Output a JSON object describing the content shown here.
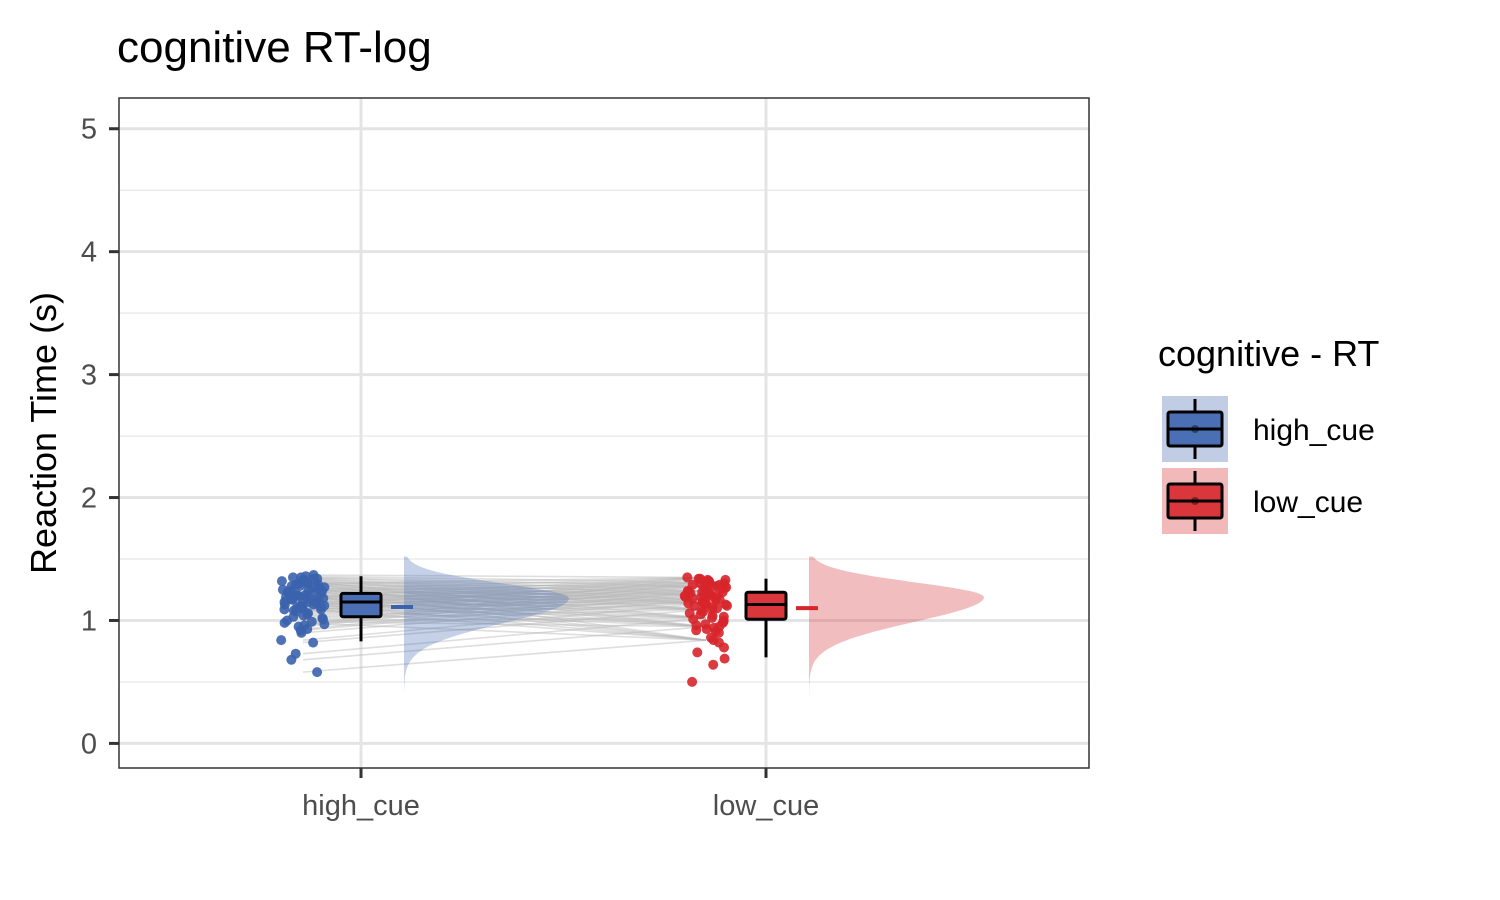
{
  "chart_data": {
    "type": "raincloud",
    "title": "cognitive RT-log",
    "ylabel": "Reaction Time (s)",
    "xlabel": "",
    "categories": [
      "high_cue",
      "low_cue"
    ],
    "ylim": [
      -0.2,
      5.25
    ],
    "yticks": [
      0,
      1,
      2,
      3,
      4,
      5
    ],
    "grid": true,
    "legend": {
      "title": "cognitive  - RT",
      "position": "right",
      "entries": [
        "high_cue",
        "low_cue"
      ]
    },
    "series": [
      {
        "name": "high_cue",
        "color": "#3b63ad",
        "fill": "#4a6fb5",
        "box": {
          "min": 0.83,
          "q1": 1.03,
          "median": 1.15,
          "q3": 1.22,
          "max": 1.36
        },
        "mean": 1.11,
        "density_range": [
          0.42,
          1.52
        ],
        "density_peak": 1.18,
        "points": [
          1.37,
          1.36,
          1.35,
          1.35,
          1.34,
          1.34,
          1.33,
          1.33,
          1.32,
          1.32,
          1.31,
          1.3,
          1.3,
          1.29,
          1.29,
          1.28,
          1.28,
          1.27,
          1.27,
          1.26,
          1.26,
          1.25,
          1.25,
          1.24,
          1.24,
          1.23,
          1.23,
          1.22,
          1.22,
          1.21,
          1.21,
          1.2,
          1.2,
          1.19,
          1.19,
          1.18,
          1.18,
          1.17,
          1.17,
          1.16,
          1.16,
          1.15,
          1.15,
          1.14,
          1.14,
          1.13,
          1.13,
          1.12,
          1.12,
          1.11,
          1.11,
          1.1,
          1.1,
          1.09,
          1.09,
          1.08,
          1.07,
          1.06,
          1.05,
          1.04,
          1.03,
          1.02,
          1.01,
          1.0,
          0.99,
          0.98,
          0.97,
          0.96,
          0.95,
          0.93,
          0.92,
          0.9,
          0.84,
          0.82,
          0.73,
          0.68,
          0.58
        ]
      },
      {
        "name": "low_cue",
        "color": "#d7262b",
        "fill": "#d9373b",
        "box": {
          "min": 0.7,
          "q1": 1.01,
          "median": 1.13,
          "q3": 1.23,
          "max": 1.34
        },
        "mean": 1.1,
        "density_range": [
          0.33,
          1.52
        ],
        "density_peak": 1.19,
        "points": [
          1.35,
          1.34,
          1.34,
          1.33,
          1.33,
          1.32,
          1.32,
          1.31,
          1.31,
          1.3,
          1.3,
          1.29,
          1.29,
          1.28,
          1.28,
          1.27,
          1.27,
          1.26,
          1.26,
          1.25,
          1.25,
          1.24,
          1.24,
          1.23,
          1.23,
          1.22,
          1.22,
          1.21,
          1.21,
          1.2,
          1.2,
          1.19,
          1.19,
          1.18,
          1.18,
          1.17,
          1.17,
          1.16,
          1.16,
          1.15,
          1.15,
          1.14,
          1.14,
          1.13,
          1.13,
          1.12,
          1.12,
          1.11,
          1.1,
          1.09,
          1.08,
          1.07,
          1.06,
          1.05,
          1.04,
          1.03,
          1.02,
          1.01,
          1.0,
          0.99,
          0.98,
          0.97,
          0.96,
          0.95,
          0.94,
          0.93,
          0.92,
          0.91,
          0.9,
          0.86,
          0.84,
          0.82,
          0.78,
          0.74,
          0.69,
          0.64,
          0.5
        ]
      }
    ]
  }
}
